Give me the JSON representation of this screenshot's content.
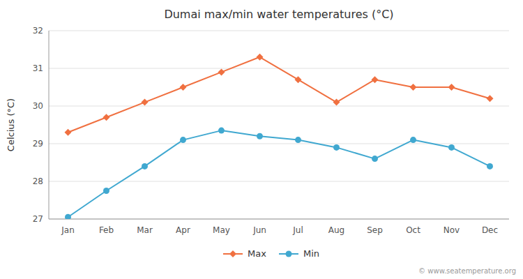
{
  "chart_data": {
    "type": "line",
    "title": "Dumai max/min water temperatures (°C)",
    "ylabel": "Celcius (°C)",
    "categories": [
      "Jan",
      "Feb",
      "Mar",
      "Apr",
      "May",
      "Jun",
      "Jul",
      "Aug",
      "Sep",
      "Oct",
      "Nov",
      "Dec"
    ],
    "series": [
      {
        "name": "Max",
        "color": "#f07040",
        "marker": "diamond",
        "values": [
          29.3,
          29.7,
          30.1,
          30.5,
          30.9,
          31.3,
          30.7,
          30.1,
          30.7,
          30.5,
          30.5,
          30.2
        ]
      },
      {
        "name": "Min",
        "color": "#40a8d0",
        "marker": "circle",
        "values": [
          27.05,
          27.75,
          28.4,
          29.1,
          29.35,
          29.2,
          29.1,
          28.9,
          28.6,
          29.1,
          28.9,
          28.4
        ]
      }
    ],
    "ylim": [
      27,
      32
    ],
    "yticks": [
      27,
      28,
      29,
      30,
      31,
      32
    ],
    "grid": true,
    "legend": "bottom",
    "annotations": [
      "© www.seatemperature.org"
    ]
  }
}
